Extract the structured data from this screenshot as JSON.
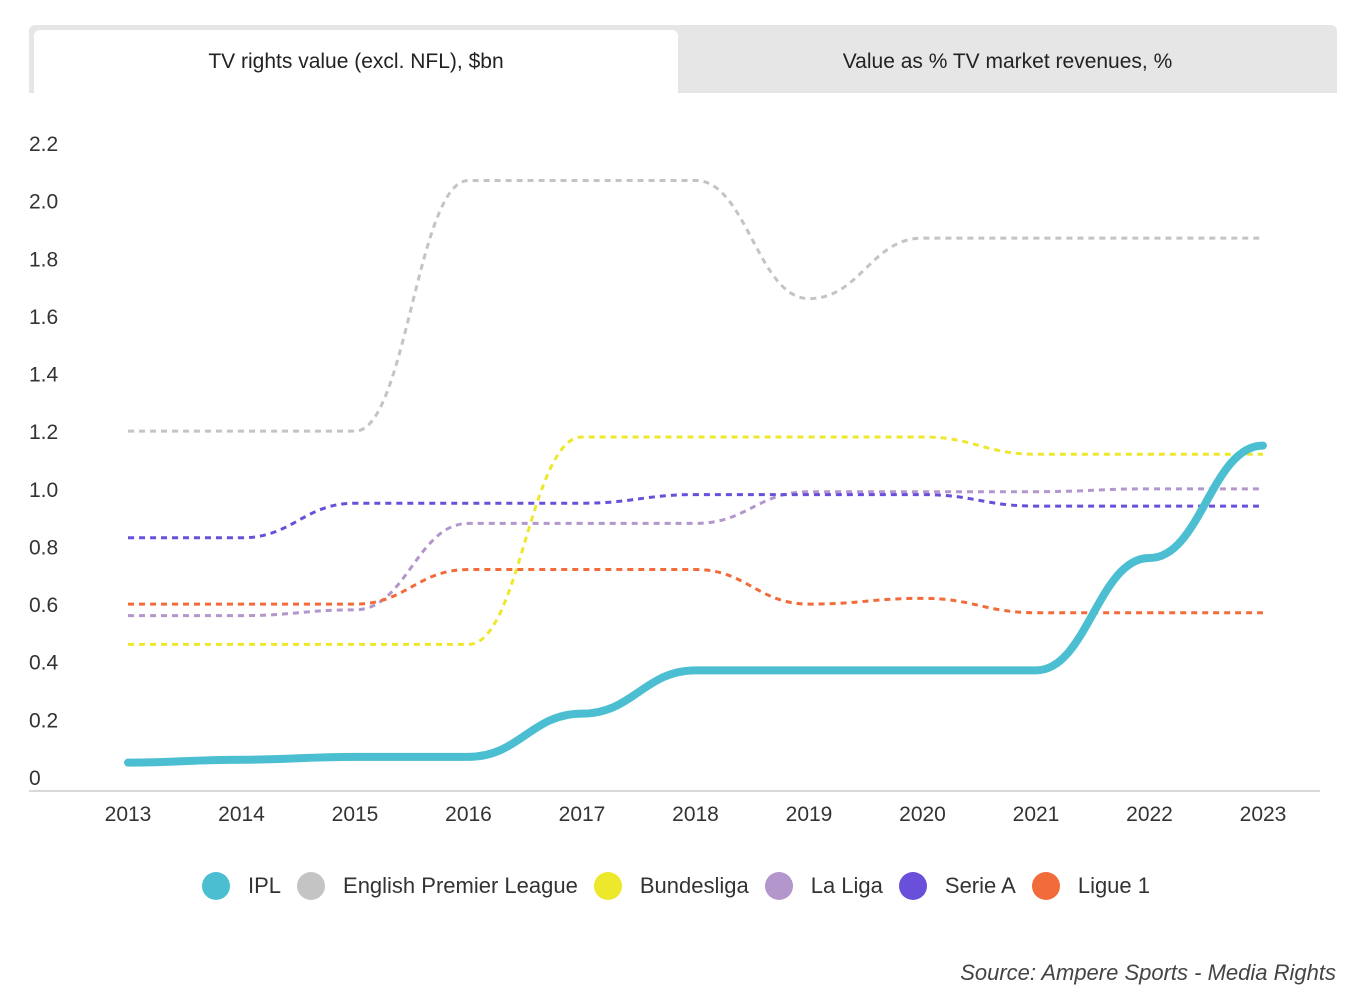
{
  "tabs": [
    {
      "label": "TV rights value (excl. NFL), $bn",
      "active": true
    },
    {
      "label": "Value as % TV market revenues, %",
      "active": false
    }
  ],
  "source": "Source: Ampere Sports - Media Rights",
  "chart_data": {
    "type": "line",
    "title": "TV rights value (excl. NFL), $bn",
    "xlabel": "",
    "ylabel": "",
    "ylim": [
      0,
      2.2
    ],
    "yticks": [
      0,
      0.2,
      0.4,
      0.6,
      0.8,
      1.0,
      1.2,
      1.4,
      1.6,
      1.8,
      2.0,
      2.2
    ],
    "ytick_labels": [
      "0",
      "0.2",
      "0.4",
      "0.6",
      "0.8",
      "1.0",
      "1.2",
      "1.4",
      "1.6",
      "1.8",
      "2.0",
      "2.2"
    ],
    "categories": [
      "2013",
      "2014",
      "2015",
      "2016",
      "2017",
      "2018",
      "2019",
      "2020",
      "2021",
      "2022",
      "2023"
    ],
    "grid": false,
    "legend_position": "bottom",
    "series": [
      {
        "name": "English Premier League",
        "color": "#c4c4c4",
        "style": "dashed",
        "values": [
          1.2,
          1.2,
          1.2,
          2.07,
          2.07,
          2.07,
          1.66,
          1.87,
          1.87,
          1.87,
          1.87
        ]
      },
      {
        "name": "Bundesliga",
        "color": "#eee82c",
        "style": "dashed",
        "values": [
          0.46,
          0.46,
          0.46,
          0.46,
          1.18,
          1.18,
          1.18,
          1.18,
          1.12,
          1.12,
          1.12
        ]
      },
      {
        "name": "La Liga",
        "color": "#b296cc",
        "style": "dashed",
        "values": [
          0.56,
          0.56,
          0.58,
          0.88,
          0.88,
          0.88,
          0.99,
          0.99,
          0.99,
          1.0,
          1.0
        ]
      },
      {
        "name": "Serie A",
        "color": "#6a4fdb",
        "style": "dashed",
        "values": [
          0.83,
          0.83,
          0.95,
          0.95,
          0.95,
          0.98,
          0.98,
          0.98,
          0.94,
          0.94,
          0.94
        ]
      },
      {
        "name": "Ligue 1",
        "color": "#f26b3a",
        "style": "dashed",
        "values": [
          0.6,
          0.6,
          0.6,
          0.72,
          0.72,
          0.72,
          0.6,
          0.62,
          0.57,
          0.57,
          0.57
        ]
      },
      {
        "name": "IPL",
        "color": "#4bbfd1",
        "style": "solid",
        "values": [
          0.05,
          0.06,
          0.07,
          0.07,
          0.22,
          0.37,
          0.37,
          0.37,
          0.37,
          0.76,
          1.15
        ]
      }
    ],
    "legend_order": [
      "IPL",
      "English Premier League",
      "Bundesliga",
      "La Liga",
      "Serie A",
      "Ligue 1"
    ]
  }
}
